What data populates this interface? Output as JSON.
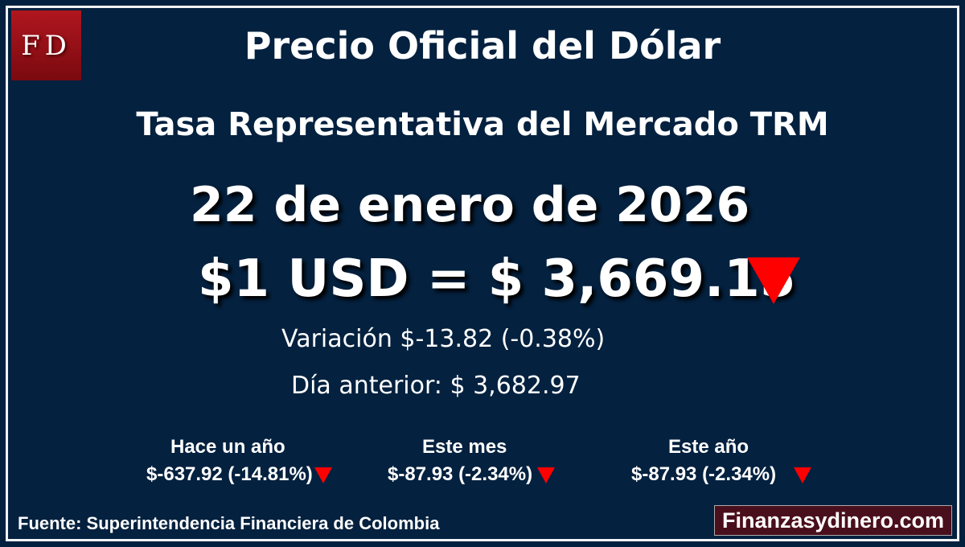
{
  "logo": {
    "text": "FD",
    "color": "#a3121b"
  },
  "title": "Precio Oficial del Dólar",
  "subtitle": "Tasa Representativa del Mercado TRM",
  "date": "22 de enero de 2026",
  "price": "$1 USD = $ 3,669.15",
  "trend_icon": "down-triangle-icon",
  "trend_color": "#ff0000",
  "variation": "Variación $-13.82 (-0.38%)",
  "previous_day": "Día anterior: $ 3,682.97",
  "stats": [
    {
      "label": "Hace un año",
      "value": "$-637.92 (-14.81%)"
    },
    {
      "label": "Este mes",
      "value": "$-87.93 (-2.34%)"
    },
    {
      "label": "Este año",
      "value": "$-87.93 (-2.34%)"
    }
  ],
  "source": "Fuente: Superintendencia Financiera de Colombia",
  "site": "Finanzasydinero.com",
  "background_color": "#04213f"
}
